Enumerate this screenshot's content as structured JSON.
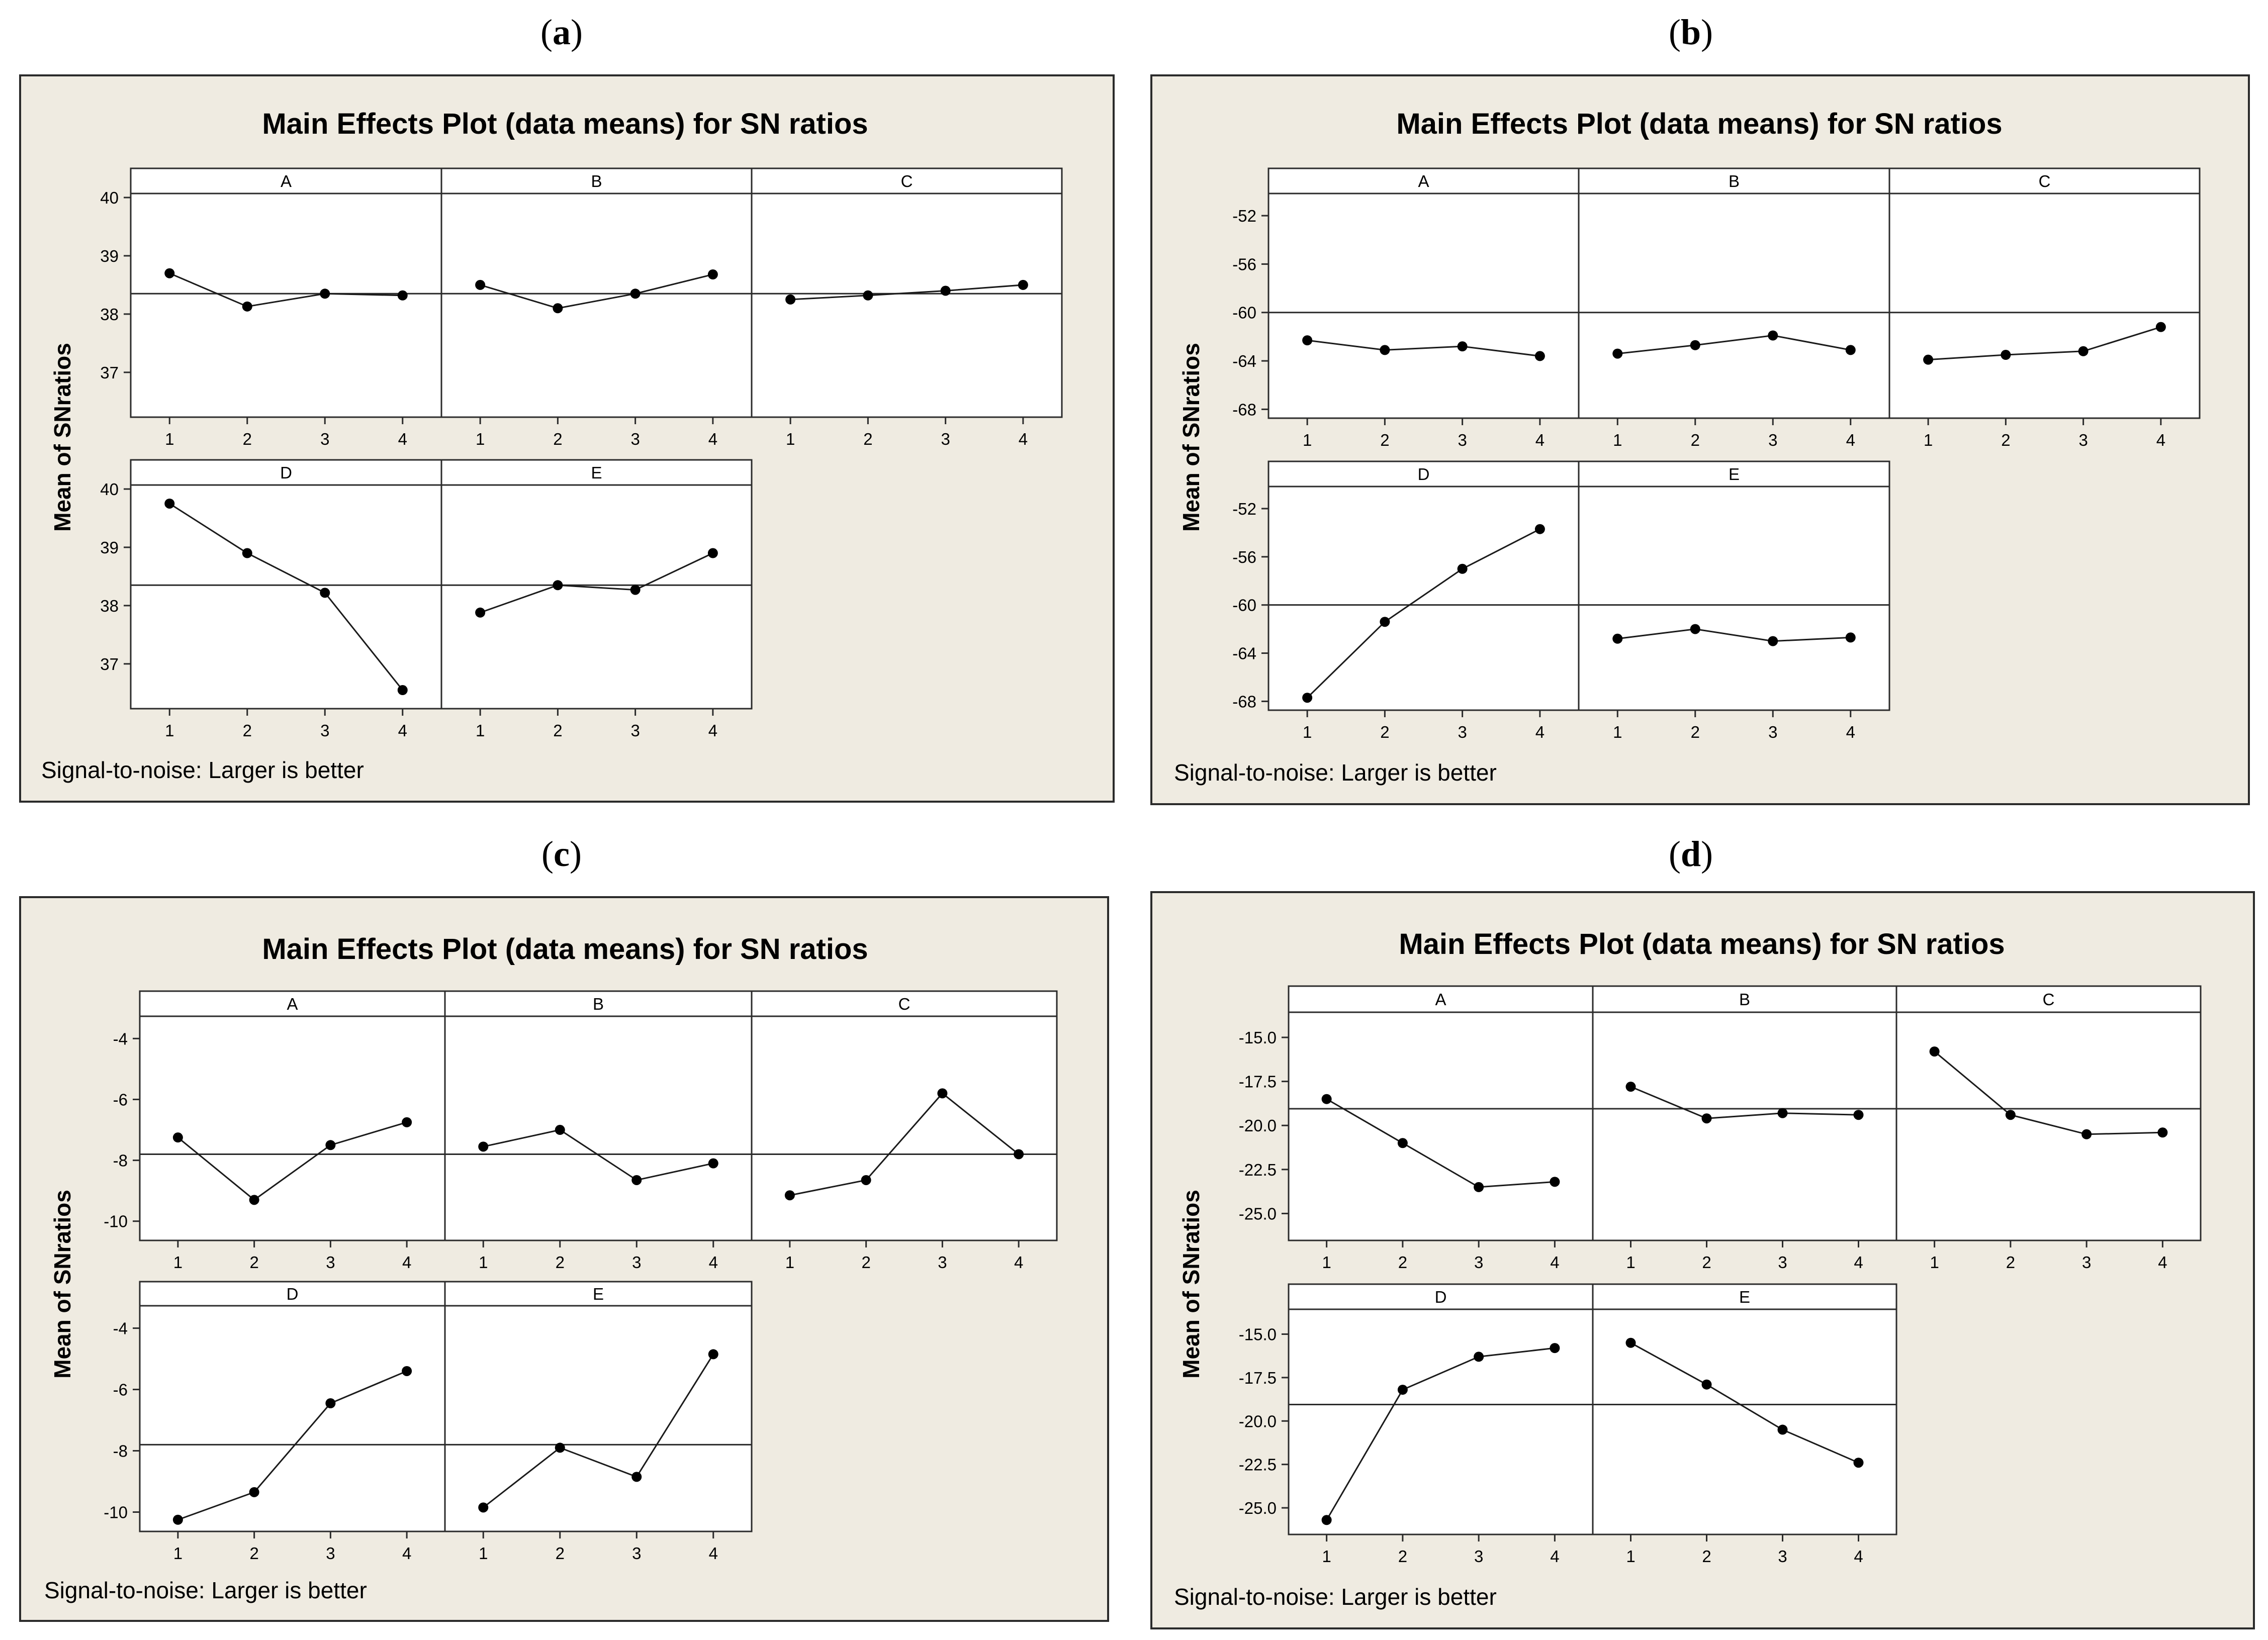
{
  "colors": {
    "panel_background": "#efebe1",
    "plot_background": "#ffffff",
    "frame": "#2b2b2b",
    "line": "#1a1a1a",
    "marker": "#000000"
  },
  "chart_data": [
    {
      "id": "a",
      "panel_label": "(a)",
      "label_letter": "a",
      "type": "line",
      "title": "Main Effects Plot (data means) for SN ratios",
      "ylabel": "Mean of SNratios",
      "footnote": "Signal-to-noise: Larger is better",
      "x": [
        "1",
        "2",
        "3",
        "4"
      ],
      "ylim": [
        36.3,
        40.0
      ],
      "yticks": [
        "37",
        "38",
        "39",
        "40"
      ],
      "reference_mean": 38.35,
      "grid": false,
      "factors": [
        {
          "name": "A",
          "values": [
            38.7,
            38.13,
            38.35,
            38.32
          ]
        },
        {
          "name": "B",
          "values": [
            38.5,
            38.1,
            38.35,
            38.68
          ]
        },
        {
          "name": "C",
          "values": [
            38.25,
            38.32,
            38.4,
            38.5
          ]
        },
        {
          "name": "D",
          "values": [
            39.75,
            38.9,
            38.22,
            36.55
          ]
        },
        {
          "name": "E",
          "values": [
            37.88,
            38.35,
            38.27,
            38.9
          ]
        }
      ]
    },
    {
      "id": "b",
      "panel_label": "(b)",
      "label_letter": "b",
      "type": "line",
      "title": "Main Effects Plot (data means) for SN ratios",
      "ylabel": "Mean of SNratios",
      "footnote": "Signal-to-noise: Larger is better",
      "x": [
        "1",
        "2",
        "3",
        "4"
      ],
      "ylim": [
        -68.4,
        -50.5
      ],
      "yticks": [
        "-52",
        "-56",
        "-60",
        "-64",
        "-68"
      ],
      "reference_mean": -60.0,
      "grid": false,
      "factors": [
        {
          "name": "A",
          "values": [
            -62.3,
            -63.1,
            -62.8,
            -63.6
          ]
        },
        {
          "name": "B",
          "values": [
            -63.4,
            -62.7,
            -61.9,
            -63.1
          ]
        },
        {
          "name": "C",
          "values": [
            -63.9,
            -63.5,
            -63.2,
            -61.2
          ]
        },
        {
          "name": "D",
          "values": [
            -67.7,
            -61.4,
            -57.0,
            -53.7
          ]
        },
        {
          "name": "E",
          "values": [
            -62.8,
            -62.0,
            -63.0,
            -62.7
          ]
        }
      ]
    },
    {
      "id": "c",
      "panel_label": "(c)",
      "label_letter": "c",
      "type": "line",
      "title": "Main Effects Plot (data means) for SN ratios",
      "ylabel": "Mean of SNratios",
      "footnote": "Signal-to-noise: Larger is better",
      "x": [
        "1",
        "2",
        "3",
        "4"
      ],
      "ylim": [
        -10.5,
        -3.4
      ],
      "yticks": [
        "-4",
        "-6",
        "-8",
        "-10"
      ],
      "reference_mean": -7.8,
      "grid": false,
      "factors": [
        {
          "name": "A",
          "values": [
            -7.25,
            -9.3,
            -7.5,
            -6.75
          ]
        },
        {
          "name": "B",
          "values": [
            -7.55,
            -7.0,
            -8.65,
            -8.1
          ]
        },
        {
          "name": "C",
          "values": [
            -9.15,
            -8.65,
            -5.8,
            -7.8
          ]
        },
        {
          "name": "D",
          "values": [
            -10.25,
            -9.35,
            -6.45,
            -5.4
          ]
        },
        {
          "name": "E",
          "values": [
            -9.85,
            -7.9,
            -8.85,
            -4.85
          ]
        }
      ]
    },
    {
      "id": "d",
      "panel_label": "(d)",
      "label_letter": "d",
      "type": "line",
      "title": "Main Effects Plot (data means) for SN ratios",
      "ylabel": "Mean of SNratios",
      "footnote": "Signal-to-noise: Larger is better",
      "x": [
        "1",
        "2",
        "3",
        "4"
      ],
      "ylim": [
        -26.3,
        -13.8
      ],
      "yticks": [
        "-15.0",
        "-17.5",
        "-20.0",
        "-22.5",
        "-25.0"
      ],
      "reference_mean": -19.05,
      "grid": false,
      "factors": [
        {
          "name": "A",
          "values": [
            -18.5,
            -21.0,
            -23.5,
            -23.2
          ]
        },
        {
          "name": "B",
          "values": [
            -17.8,
            -19.6,
            -19.3,
            -19.4
          ]
        },
        {
          "name": "C",
          "values": [
            -15.8,
            -19.4,
            -20.5,
            -20.4
          ]
        },
        {
          "name": "D",
          "values": [
            -25.7,
            -18.2,
            -16.3,
            -15.8
          ]
        },
        {
          "name": "E",
          "values": [
            -15.5,
            -17.9,
            -20.5,
            -22.4
          ]
        }
      ]
    }
  ]
}
